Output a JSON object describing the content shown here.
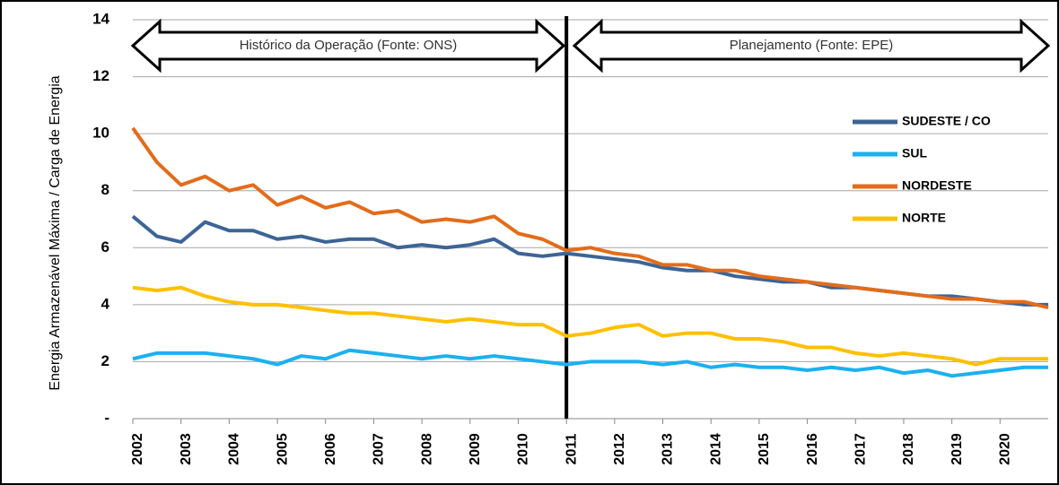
{
  "chart_data": {
    "type": "line",
    "y_label": "Energia Armazenável Máxima / Carga de Energia",
    "annotations": [
      "Histórico da Operação (Fonte: ONS)",
      "Planejamento (Fonte: EPE)"
    ],
    "x": [
      2002,
      2002.5,
      2003,
      2003.5,
      2004,
      2004.5,
      2005,
      2005.5,
      2006,
      2006.5,
      2007,
      2007.5,
      2008,
      2008.5,
      2009,
      2009.5,
      2010,
      2010.5,
      2011,
      2011.5,
      2012,
      2012.5,
      2013,
      2013.5,
      2014,
      2014.5,
      2015,
      2015.5,
      2016,
      2016.5,
      2017,
      2017.5,
      2018,
      2018.5,
      2019,
      2019.5,
      2020,
      2020.5,
      2021
    ],
    "series": [
      {
        "name": "SUDESTE / CO",
        "color": "#3d6496",
        "values": [
          7.1,
          6.4,
          6.2,
          6.9,
          6.6,
          6.6,
          6.3,
          6.4,
          6.2,
          6.3,
          6.3,
          6.0,
          6.1,
          6.0,
          6.1,
          6.3,
          5.8,
          5.7,
          5.8,
          5.7,
          5.6,
          5.5,
          5.3,
          5.2,
          5.2,
          5.0,
          4.9,
          4.8,
          4.8,
          4.6,
          4.6,
          4.5,
          4.4,
          4.3,
          4.3,
          4.2,
          4.1,
          4.0,
          4.0
        ]
      },
      {
        "name": "SUL",
        "color": "#1cb0f0",
        "values": [
          2.1,
          2.3,
          2.3,
          2.3,
          2.2,
          2.1,
          1.9,
          2.2,
          2.1,
          2.4,
          2.3,
          2.2,
          2.1,
          2.2,
          2.1,
          2.2,
          2.1,
          2.0,
          1.9,
          2.0,
          2.0,
          2.0,
          1.9,
          2.0,
          1.8,
          1.9,
          1.8,
          1.8,
          1.7,
          1.8,
          1.7,
          1.8,
          1.6,
          1.7,
          1.5,
          1.6,
          1.7,
          1.8,
          1.8
        ]
      },
      {
        "name": "NORDESTE",
        "color": "#e36c1a",
        "values": [
          10.2,
          9.0,
          8.2,
          8.5,
          8.0,
          8.2,
          7.5,
          7.8,
          7.4,
          7.6,
          7.2,
          7.3,
          6.9,
          7.0,
          6.9,
          7.1,
          6.5,
          6.3,
          5.9,
          6.0,
          5.8,
          5.7,
          5.4,
          5.4,
          5.2,
          5.2,
          5.0,
          4.9,
          4.8,
          4.7,
          4.6,
          4.5,
          4.4,
          4.3,
          4.2,
          4.2,
          4.1,
          4.1,
          3.9
        ]
      },
      {
        "name": "NORTE",
        "color": "#ffc000",
        "values": [
          4.6,
          4.5,
          4.6,
          4.3,
          4.1,
          4.0,
          4.0,
          3.9,
          3.8,
          3.7,
          3.7,
          3.6,
          3.5,
          3.4,
          3.5,
          3.4,
          3.3,
          3.3,
          2.9,
          3.0,
          3.2,
          3.3,
          2.9,
          3.0,
          3.0,
          2.8,
          2.8,
          2.7,
          2.5,
          2.5,
          2.3,
          2.2,
          2.3,
          2.2,
          2.1,
          1.9,
          2.1,
          2.1,
          2.1
        ]
      }
    ],
    "xlim": [
      2002,
      2021
    ],
    "xticks": [
      2002,
      2003,
      2004,
      2005,
      2006,
      2007,
      2008,
      2009,
      2010,
      2011,
      2012,
      2013,
      2014,
      2015,
      2016,
      2017,
      2018,
      2019,
      2020
    ],
    "ylim": [
      0,
      14
    ],
    "yticks": [
      {
        "value": 0,
        "label": "-"
      },
      2,
      4,
      6,
      8,
      10,
      12,
      14
    ],
    "grid": true
  }
}
